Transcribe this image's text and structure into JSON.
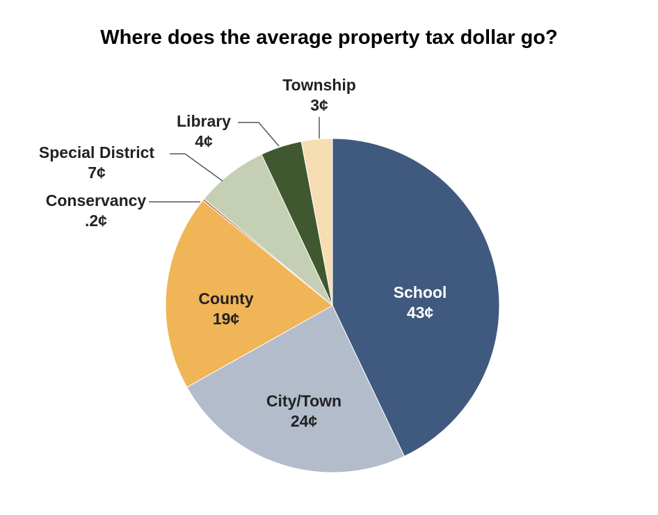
{
  "chart_data": {
    "type": "pie",
    "title": "Where does the average property tax dollar go?",
    "slices": [
      {
        "name": "School",
        "label": "School",
        "value_label": "43¢",
        "value": 43,
        "color": "#3f5a7e",
        "text_color": "#ffffff"
      },
      {
        "name": "City/Town",
        "label": "City/Town",
        "value_label": "24¢",
        "value": 24,
        "color": "#b2bccb",
        "text_color": "#222222"
      },
      {
        "name": "County",
        "label": "County",
        "value_label": "19¢",
        "value": 19,
        "color": "#f0b557",
        "text_color": "#222222"
      },
      {
        "name": "Conservancy",
        "label": "Conservancy",
        "value_label": ".2¢",
        "value": 0.2,
        "color": "#c0734a",
        "text_color": "#222222"
      },
      {
        "name": "Special District",
        "label": "Special District",
        "value_label": "7¢",
        "value": 7,
        "color": "#c4cfb4",
        "text_color": "#222222"
      },
      {
        "name": "Library",
        "label": "Library",
        "value_label": "4¢",
        "value": 4,
        "color": "#3f5830",
        "text_color": "#222222"
      },
      {
        "name": "Township",
        "label": "Township",
        "value_label": "3¢",
        "value": 3,
        "color": "#f7ddb2",
        "text_color": "#222222"
      }
    ]
  }
}
